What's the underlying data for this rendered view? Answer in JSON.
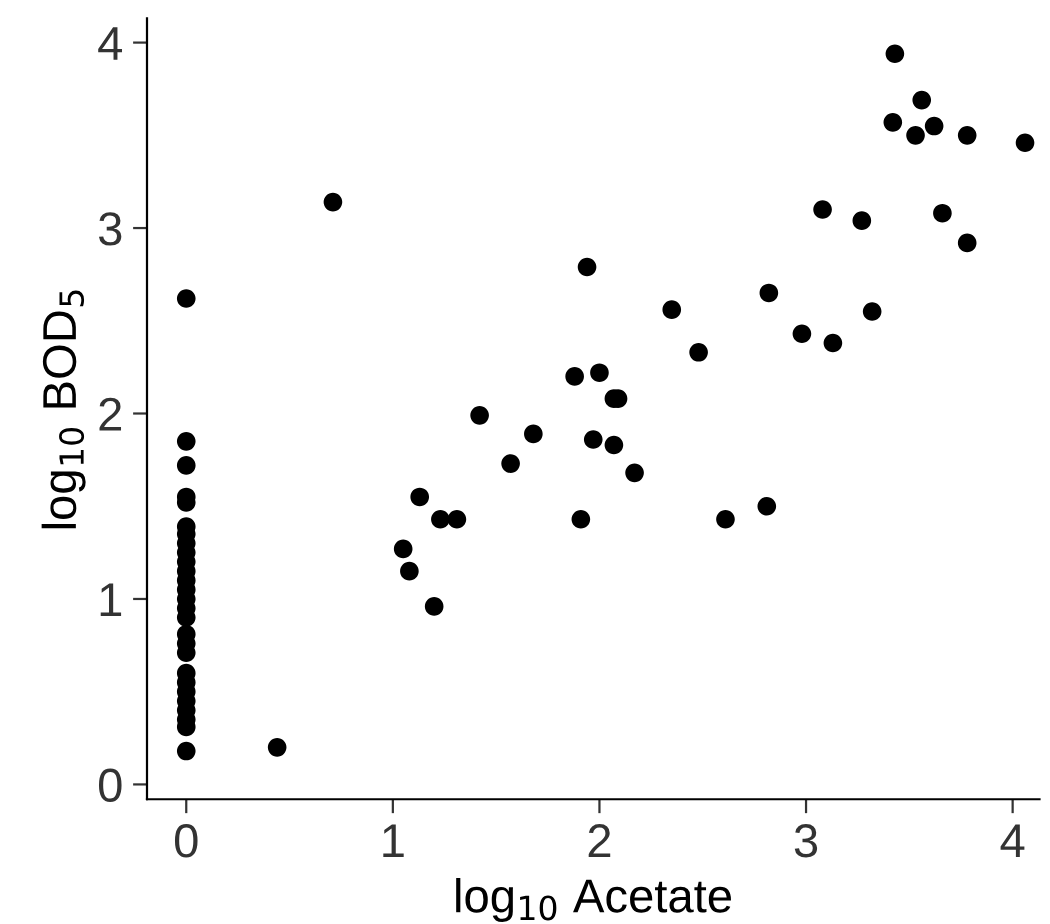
{
  "chart_data": {
    "type": "scatter",
    "xlabel": "log$_{10}$ Acetate",
    "ylabel": "log$_{10}$ BOD$_{5}$",
    "x": [
      0,
      0,
      0,
      0,
      0,
      0,
      0,
      0,
      0,
      0,
      0,
      0,
      0,
      0,
      0,
      0,
      0,
      0,
      0,
      0,
      0,
      0,
      0,
      0,
      0,
      0,
      0,
      0.44,
      0.71,
      1.94,
      2.35,
      2.48,
      1.88,
      2.0,
      2.07,
      2.09,
      1.42,
      1.68,
      1.97,
      2.07,
      1.57,
      2.17,
      1.13,
      1.23,
      1.31,
      1.91,
      1.05,
      1.08,
      1.2,
      3.43,
      3.56,
      3.42,
      3.53,
      3.62,
      3.78,
      4.06,
      3.08,
      3.27,
      3.66,
      3.78,
      2.82,
      3.32,
      2.98,
      3.13,
      2.81,
      2.61
    ],
    "values": [
      2.62,
      1.85,
      1.72,
      1.55,
      1.52,
      1.39,
      1.35,
      1.3,
      1.25,
      1.2,
      1.15,
      1.1,
      1.05,
      1.0,
      0.95,
      0.9,
      0.81,
      0.76,
      0.71,
      0.6,
      0.55,
      0.5,
      0.45,
      0.4,
      0.35,
      0.31,
      0.18,
      0.2,
      3.14,
      2.79,
      2.56,
      2.33,
      2.2,
      2.22,
      2.08,
      2.08,
      1.99,
      1.89,
      1.86,
      1.83,
      1.73,
      1.68,
      1.55,
      1.43,
      1.43,
      1.43,
      1.27,
      1.15,
      0.96,
      3.94,
      3.69,
      3.57,
      3.5,
      3.55,
      3.5,
      3.46,
      3.1,
      3.04,
      3.08,
      2.92,
      2.65,
      2.55,
      2.43,
      2.38,
      1.5,
      1.43
    ],
    "color": "#000000",
    "marker": "circle",
    "grid": false,
    "xlim": [
      -0.19,
      4.13
    ],
    "ylim": [
      -0.08,
      4.13
    ],
    "xticks": [
      0,
      1,
      2,
      3,
      4
    ],
    "yticks": [
      0,
      1,
      2,
      3,
      4
    ]
  }
}
